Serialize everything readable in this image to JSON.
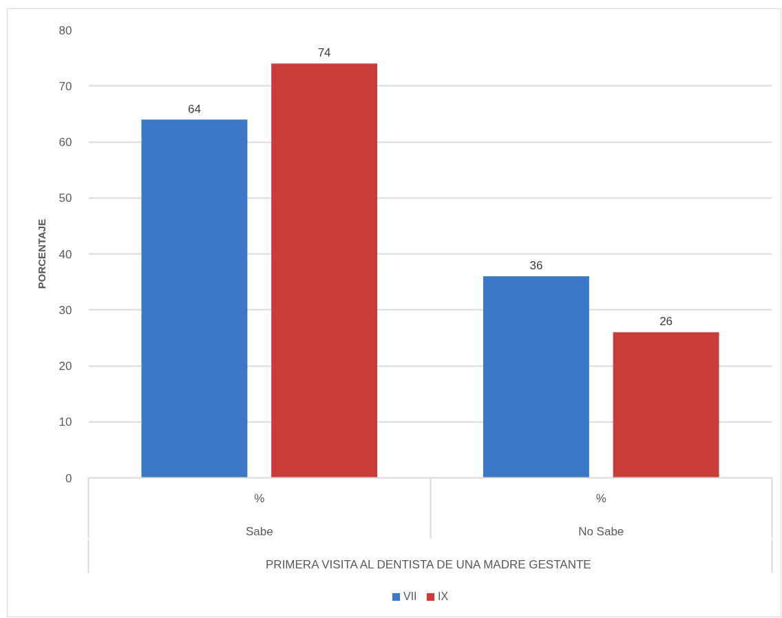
{
  "chart_data": {
    "type": "bar",
    "categories": [
      "Sabe",
      "No Sabe"
    ],
    "series": [
      {
        "name": "VII",
        "color": "#3d78c6",
        "values": [
          64,
          36
        ]
      },
      {
        "name": "IX",
        "color": "#c93c39",
        "values": [
          74,
          26
        ]
      }
    ],
    "ylabel": "PORCENTAJE",
    "xlabel": "PRIMERA VISITA AL DENTISTA DE UNA MADRE GESTANTE",
    "annotations": [
      "%",
      "%"
    ],
    "ylim": [
      0,
      80
    ],
    "yticks": [
      0,
      10,
      20,
      30,
      40,
      50,
      60,
      70,
      80
    ],
    "grid": "y",
    "legend": "bottom",
    "data_labels": true
  }
}
